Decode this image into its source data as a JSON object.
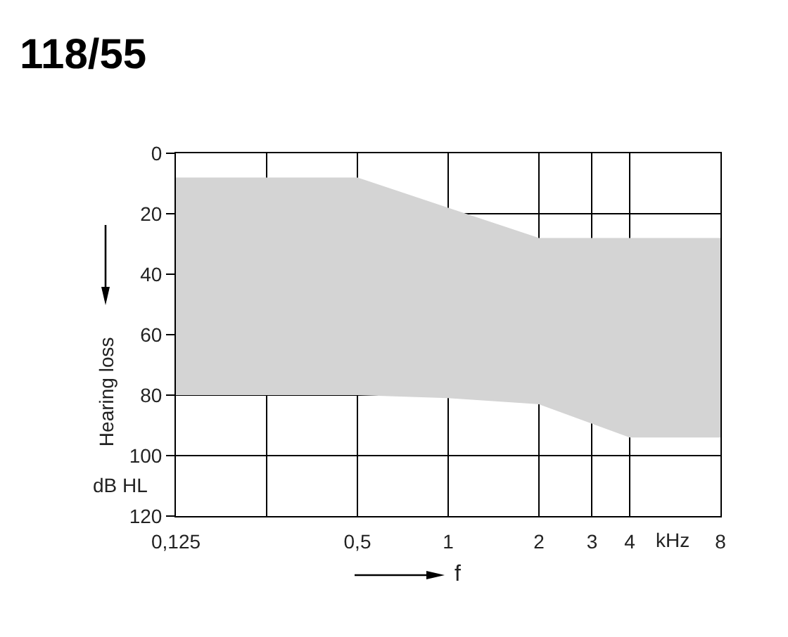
{
  "chart_data": {
    "type": "area",
    "title": "118/55",
    "xlabel": "f",
    "ylabel": "Hearing loss",
    "annotations": [
      "dB HL",
      "kHz"
    ],
    "x": [
      0.125,
      0.5,
      1,
      2,
      4,
      8
    ],
    "series": [
      {
        "color": "#d4d4d4",
        "values": [
          null,
          null,
          null,
          null,
          null,
          null
        ],
        "lower": [
          8,
          8,
          18,
          28,
          28,
          28
        ],
        "upper": [
          80,
          80,
          81,
          83,
          94,
          94
        ]
      }
    ],
    "xlim": [
      0.125,
      8
    ],
    "xticks": [
      {
        "value": 0.125,
        "label": "0,125"
      },
      {
        "value": 0.25,
        "label": null
      },
      {
        "value": 0.5,
        "label": "0,5"
      },
      1,
      2,
      3,
      4,
      8
    ],
    "ylim": [
      120,
      0
    ],
    "yticks": [
      0,
      20,
      40,
      60,
      80,
      100,
      120
    ],
    "log": "x",
    "grid": true
  }
}
